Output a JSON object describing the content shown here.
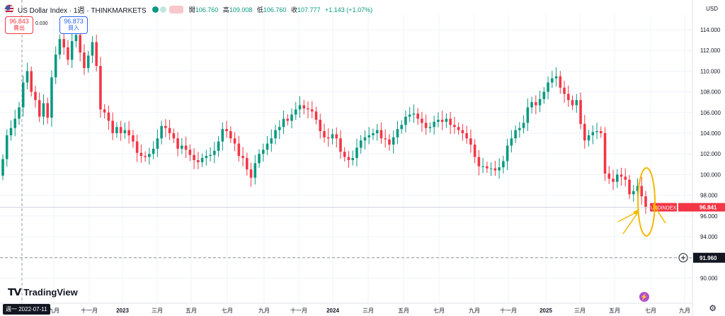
{
  "header": {
    "title": "US Dollar Index · 1週 · THINKMARKETS",
    "ohlc": [
      {
        "label": "開",
        "value": "106.760"
      },
      {
        "label": "高",
        "value": "109.008"
      },
      {
        "label": "低",
        "value": "106.760"
      },
      {
        "label": "收",
        "value": "107.777"
      },
      {
        "label": "",
        "value": "+1.143 (+1.07%)"
      }
    ]
  },
  "trade": {
    "sell_price": "96.843",
    "sell_label": "賣出",
    "spread": "0.030",
    "buy_price": "96.873",
    "buy_label": "買入"
  },
  "currency": "USD",
  "crosshair_date": "週一  2022-07-11",
  "crosshair_price": "91.960",
  "logo_text": "TradingView",
  "symbol_badge": {
    "symbol": "USDINDEX",
    "price": "96.841"
  },
  "colors": {
    "up": "#089981",
    "down": "#f23645",
    "annotation": "#f5b800"
  },
  "icons": [
    "flag-icon",
    "settings-icon",
    "lightning-icon",
    "crosshair-plus-icon"
  ],
  "chart_data": {
    "type": "candlestick",
    "symbol": "US Dollar Index",
    "interval": "1週",
    "provider": "THINKMARKETS",
    "ylim": [
      88.5,
      115.5
    ],
    "yticks": [
      114,
      112,
      110,
      108,
      106,
      104,
      102,
      100,
      98,
      96,
      94,
      92,
      90
    ],
    "x_ticks": [
      "九月",
      "十一月",
      "2023",
      "三月",
      "五月",
      "七月",
      "九月",
      "十一月",
      "2024",
      "三月",
      "五月",
      "七月",
      "九月",
      "十一月",
      "2025",
      "三月",
      "五月",
      "七月",
      "九月"
    ],
    "x_tick_pos": [
      76,
      126,
      173,
      222,
      270,
      321,
      373,
      422,
      470,
      520,
      570,
      620,
      670,
      718,
      771,
      819,
      868,
      919,
      967
    ],
    "closes": [
      101.5,
      103.8,
      104.5,
      105.4,
      106.5,
      108.9,
      110.0,
      108.0,
      107.2,
      105.6,
      106.9,
      105.5,
      109.4,
      111.6,
      113.1,
      112.3,
      111.1,
      112.9,
      113.5,
      111.8,
      110.3,
      111.5,
      112.8,
      110.5,
      106.3,
      106.0,
      105.2,
      104.0,
      104.6,
      104.0,
      104.3,
      103.8,
      103.2,
      102.1,
      101.8,
      101.7,
      102.0,
      102.5,
      103.5,
      104.7,
      104.5,
      104.0,
      103.5,
      102.5,
      102.8,
      102.4,
      101.9,
      101.4,
      101.2,
      101.6,
      101.8,
      101.9,
      102.3,
      103.2,
      104.4,
      104.2,
      103.5,
      103.0,
      101.8,
      101.6,
      100.5,
      99.7,
      101.1,
      102.0,
      102.4,
      103.0,
      103.5,
      104.3,
      104.6,
      105.4,
      105.2,
      105.8,
      106.3,
      106.7,
      106.4,
      106.3,
      106.1,
      105.3,
      104.2,
      103.6,
      103.5,
      103.9,
      103.5,
      102.2,
      101.7,
      101.4,
      101.6,
      102.6,
      103.3,
      103.6,
      103.8,
      104.0,
      104.3,
      103.5,
      103.4,
      102.9,
      103.6,
      104.4,
      104.8,
      105.6,
      105.8,
      105.9,
      105.4,
      105.0,
      104.5,
      104.6,
      105.1,
      105.3,
      105.1,
      105.4,
      104.8,
      104.6,
      104.3,
      104.0,
      103.5,
      102.9,
      101.7,
      100.8,
      100.8,
      100.6,
      100.6,
      100.4,
      100.7,
      101.3,
      102.8,
      103.5,
      104.3,
      104.5,
      105.0,
      106.5,
      107.0,
      106.7,
      107.3,
      108.0,
      108.9,
      109.3,
      109.5,
      108.4,
      107.8,
      107.2,
      106.7,
      107.2,
      104.9,
      103.3,
      103.8,
      104.1,
      104.2,
      104.0,
      100.1,
      99.6,
      99.3,
      100.0,
      99.8,
      99.5,
      98.1,
      98.4,
      98.9,
      97.9,
      96.8
    ],
    "series_markers": [
      {
        "label": "USDINDEX",
        "value": 96.841
      }
    ],
    "crosshair": {
      "date": "2022-07-11",
      "value": 91.96
    },
    "annotations": [
      {
        "type": "ellipse",
        "color": "#f5b800",
        "note": "latest candles circled with arrows"
      }
    ]
  }
}
